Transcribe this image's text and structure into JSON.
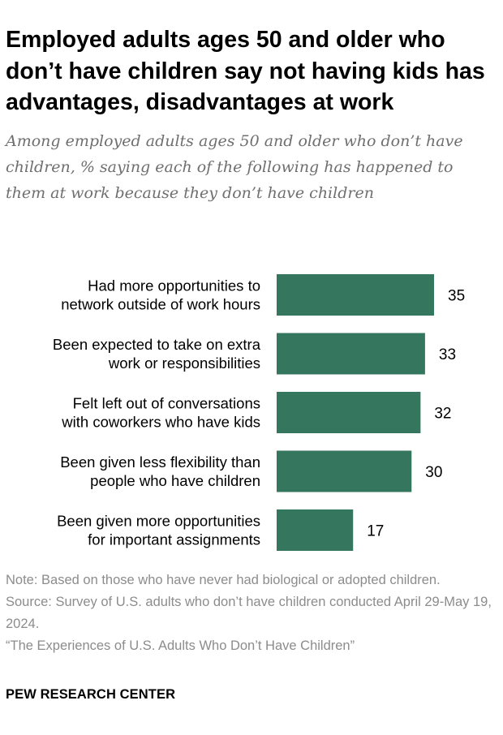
{
  "header": {
    "title": "Employed adults ages 50 and older who don’t have children say not having kids has advantages, disadvantages at work",
    "subtitle": "Among employed adults ages 50 and older who don’t have children, % saying each of the following has happened to them at work because they don’t have children"
  },
  "chart_data": {
    "type": "bar",
    "orientation": "horizontal",
    "categories": [
      [
        "Had more opportunities to",
        "network outside of work hours"
      ],
      [
        "Been expected to take on extra",
        "work or responsibilities"
      ],
      [
        "Felt left out of conversations",
        "with coworkers who have kids"
      ],
      [
        "Been given less flexibility than",
        "people who have children"
      ],
      [
        "Been given more opportunities",
        "for important assignments"
      ]
    ],
    "values": [
      35,
      33,
      32,
      30,
      17
    ],
    "bar_color": "#35765f",
    "xlim": [
      0,
      100
    ],
    "grid": false,
    "legend": false
  },
  "footer": {
    "note": "Note: Based on those who have never had biological or adopted children.",
    "source": "Source: Survey of U.S. adults who don’t have children conducted April 29-May 19, 2024.",
    "report": "“The Experiences of U.S. Adults Who Don’t Have Children”",
    "brand": "PEW RESEARCH CENTER"
  }
}
